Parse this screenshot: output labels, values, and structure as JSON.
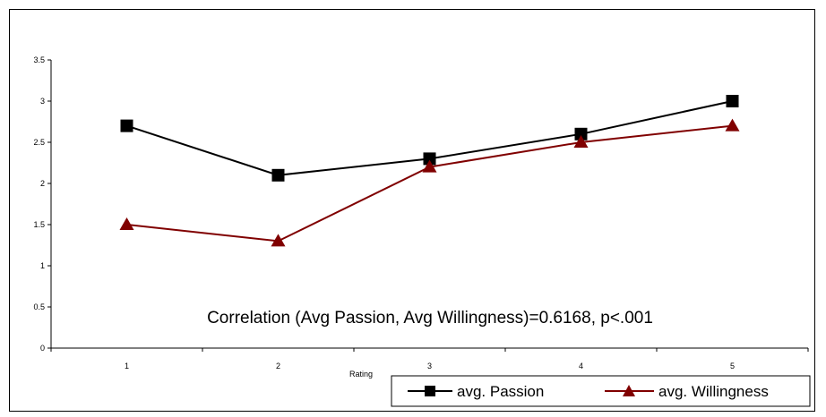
{
  "chart_data": {
    "type": "line",
    "title": "",
    "xlabel": "Rating",
    "ylabel": "",
    "categories": [
      "1",
      "2",
      "3",
      "4",
      "5"
    ],
    "ylim": [
      0,
      3.5
    ],
    "y_ticks": [
      "0",
      "0.5",
      "1",
      "1.5",
      "2",
      "2.5",
      "3",
      "3.5"
    ],
    "grid": false,
    "legend_position": "bottom-right",
    "series": [
      {
        "name": "avg. Passion",
        "values": [
          2.7,
          2.1,
          2.3,
          2.6,
          3.0
        ],
        "color": "#000000",
        "marker": "square"
      },
      {
        "name": "avg. Willingness",
        "values": [
          1.5,
          1.3,
          2.2,
          2.5,
          2.7
        ],
        "color": "#800000",
        "marker": "triangle"
      }
    ],
    "annotation": "Correlation (Avg Passion, Avg Willingness)=0.6168, p<.001"
  }
}
